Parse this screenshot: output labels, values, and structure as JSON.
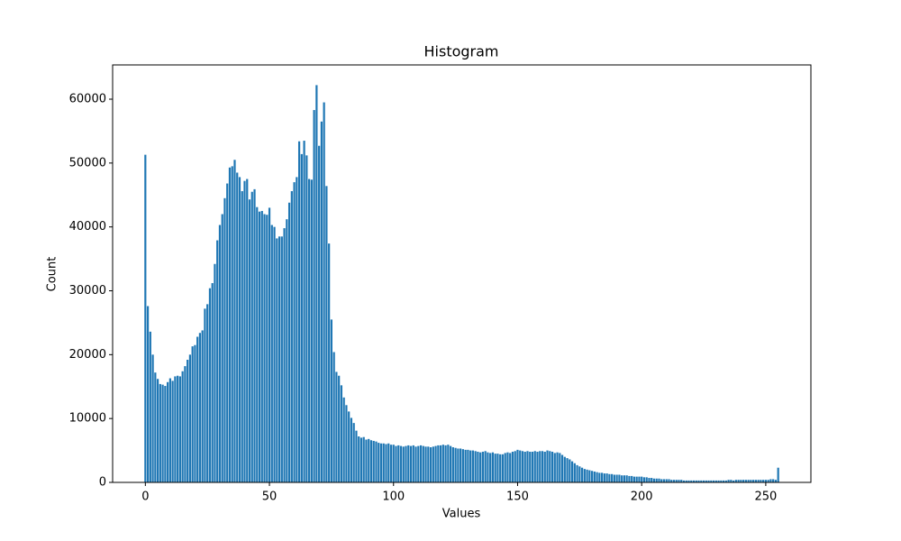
{
  "chart_data": {
    "type": "bar",
    "title": "Histogram",
    "x_label": "Values",
    "y_label": "Count",
    "color": "#1f77b4",
    "x": [
      0,
      1,
      2,
      3,
      4,
      5,
      6,
      7,
      8,
      9,
      10,
      11,
      12,
      13,
      14,
      15,
      16,
      17,
      18,
      19,
      20,
      21,
      22,
      23,
      24,
      25,
      26,
      27,
      28,
      29,
      30,
      31,
      32,
      33,
      34,
      35,
      36,
      37,
      38,
      39,
      40,
      41,
      42,
      43,
      44,
      45,
      46,
      47,
      48,
      49,
      50,
      51,
      52,
      53,
      54,
      55,
      56,
      57,
      58,
      59,
      60,
      61,
      62,
      63,
      64,
      65,
      66,
      67,
      68,
      69,
      70,
      71,
      72,
      73,
      74,
      75,
      76,
      77,
      78,
      79,
      80,
      81,
      82,
      83,
      84,
      85,
      86,
      87,
      88,
      89,
      90,
      91,
      92,
      93,
      94,
      95,
      96,
      97,
      98,
      99,
      100,
      101,
      102,
      103,
      104,
      105,
      106,
      107,
      108,
      109,
      110,
      111,
      112,
      113,
      114,
      115,
      116,
      117,
      118,
      119,
      120,
      121,
      122,
      123,
      124,
      125,
      126,
      127,
      128,
      129,
      130,
      131,
      132,
      133,
      134,
      135,
      136,
      137,
      138,
      139,
      140,
      141,
      142,
      143,
      144,
      145,
      146,
      147,
      148,
      149,
      150,
      151,
      152,
      153,
      154,
      155,
      156,
      157,
      158,
      159,
      160,
      161,
      162,
      163,
      164,
      165,
      166,
      167,
      168,
      169,
      170,
      171,
      172,
      173,
      174,
      175,
      176,
      177,
      178,
      179,
      180,
      181,
      182,
      183,
      184,
      185,
      186,
      187,
      188,
      189,
      190,
      191,
      192,
      193,
      194,
      195,
      196,
      197,
      198,
      199,
      200,
      201,
      202,
      203,
      204,
      205,
      206,
      207,
      208,
      209,
      210,
      211,
      212,
      213,
      214,
      215,
      216,
      217,
      218,
      219,
      220,
      221,
      222,
      223,
      224,
      225,
      226,
      227,
      228,
      229,
      230,
      231,
      232,
      233,
      234,
      235,
      236,
      237,
      238,
      239,
      240,
      241,
      242,
      243,
      244,
      245,
      246,
      247,
      248,
      249,
      250,
      251,
      252,
      253,
      254,
      255
    ],
    "values": [
      51300,
      27600,
      23600,
      20000,
      17200,
      16200,
      15400,
      15300,
      15100,
      15700,
      16300,
      15900,
      16600,
      16700,
      16600,
      17400,
      18200,
      19200,
      20000,
      21300,
      21500,
      22800,
      23400,
      23800,
      27200,
      27900,
      30400,
      31200,
      34200,
      37900,
      40300,
      42000,
      44500,
      46800,
      49300,
      49500,
      50500,
      48500,
      47800,
      45600,
      47200,
      47500,
      44300,
      45500,
      45900,
      43100,
      42400,
      42500,
      42000,
      41900,
      43000,
      40300,
      40000,
      38200,
      38500,
      38500,
      39800,
      41200,
      43800,
      45600,
      47000,
      47800,
      53400,
      51400,
      53500,
      51200,
      47500,
      47400,
      58300,
      62200,
      52700,
      56500,
      59500,
      46400,
      37400,
      25500,
      20400,
      17300,
      16700,
      15200,
      13300,
      12100,
      11100,
      10100,
      9300,
      8100,
      7200,
      7000,
      7100,
      6700,
      6800,
      6600,
      6500,
      6400,
      6200,
      6100,
      6100,
      6000,
      6100,
      5900,
      5900,
      5700,
      5800,
      5700,
      5600,
      5700,
      5800,
      5700,
      5800,
      5600,
      5700,
      5800,
      5700,
      5600,
      5600,
      5500,
      5600,
      5700,
      5800,
      5800,
      5900,
      5800,
      5900,
      5700,
      5500,
      5400,
      5300,
      5300,
      5200,
      5100,
      5100,
      5000,
      5000,
      4900,
      4800,
      4700,
      4800,
      4900,
      4700,
      4600,
      4700,
      4500,
      4500,
      4400,
      4400,
      4600,
      4700,
      4600,
      4800,
      4900,
      5100,
      5000,
      4900,
      4800,
      4900,
      4800,
      4800,
      4900,
      4800,
      4900,
      4900,
      4800,
      5000,
      4900,
      4800,
      4600,
      4700,
      4600,
      4300,
      4000,
      3800,
      3600,
      3300,
      3000,
      2700,
      2500,
      2300,
      2100,
      2000,
      1900,
      1800,
      1700,
      1600,
      1500,
      1500,
      1400,
      1400,
      1300,
      1300,
      1200,
      1200,
      1200,
      1100,
      1100,
      1100,
      1000,
      1000,
      900,
      900,
      900,
      900,
      800,
      800,
      700,
      700,
      600,
      600,
      600,
      500,
      500,
      500,
      500,
      400,
      400,
      400,
      400,
      400,
      300,
      300,
      300,
      300,
      300,
      300,
      300,
      300,
      300,
      300,
      300,
      300,
      300,
      300,
      300,
      300,
      300,
      300,
      400,
      400,
      300,
      400,
      400,
      400,
      400,
      400,
      400,
      400,
      400,
      400,
      400,
      400,
      400,
      400,
      400,
      500,
      500,
      400,
      2300
    ],
    "bar_width": 0.8,
    "xlim": [
      -13.19,
      268.19
    ],
    "xticks": [
      0,
      50,
      100,
      150,
      200,
      250
    ],
    "ylim": [
      0,
      65365
    ],
    "yticks": [
      0,
      10000,
      20000,
      30000,
      40000,
      50000,
      60000
    ]
  }
}
